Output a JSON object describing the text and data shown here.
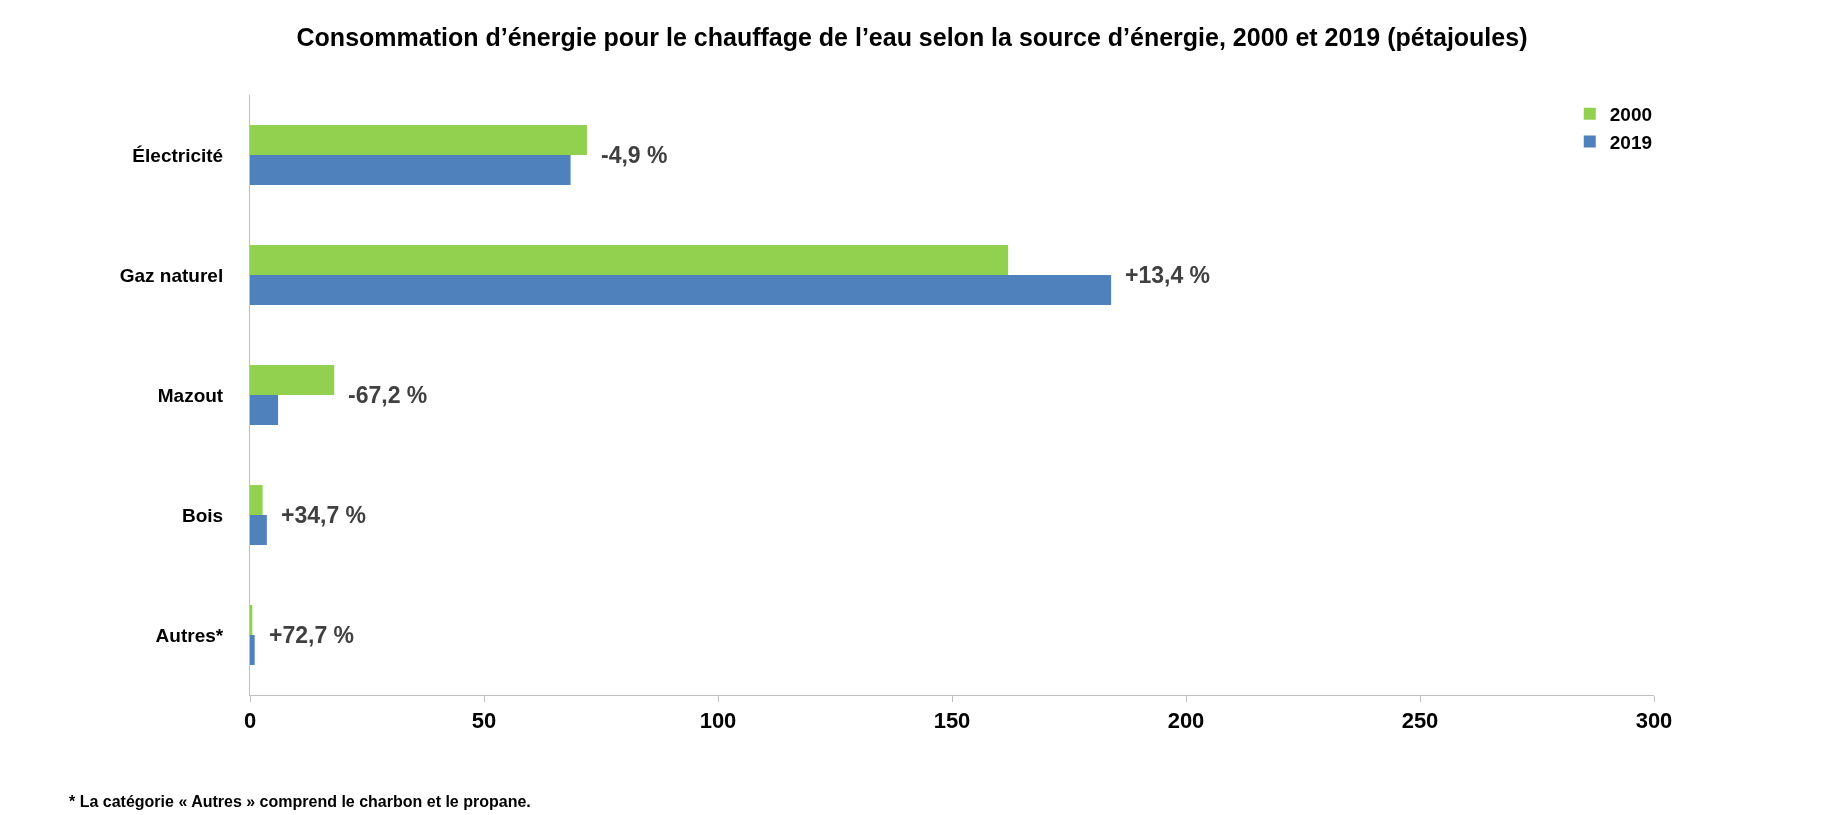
{
  "chart_data": {
    "type": "bar",
    "orientation": "horizontal",
    "title": "Consommation d’énergie pour le chauffage de l’eau selon la source d’énergie, 2000 et 2019 (pétajoules)",
    "categories": [
      "Électricité",
      "Gaz naturel",
      "Mazout",
      "Bois",
      "Autres*"
    ],
    "series": [
      {
        "name": "2000",
        "color": "#92d050",
        "values": [
          72,
          162,
          18,
          2.7,
          0.5
        ]
      },
      {
        "name": "2019",
        "color": "#4f81bd",
        "values": [
          68.5,
          184,
          6,
          3.6,
          1
        ]
      }
    ],
    "xlim": [
      0,
      300
    ],
    "xticks": [
      0,
      50,
      100,
      150,
      200,
      250,
      300
    ],
    "grid": false,
    "legend": "top right",
    "annotations": [
      "-4,9 %",
      "+13,4 %",
      "-67,2 %",
      "+34,7 %",
      "+72,7 %",
      "* La catégorie « Autres » comprend le charbon et le propane."
    ]
  }
}
